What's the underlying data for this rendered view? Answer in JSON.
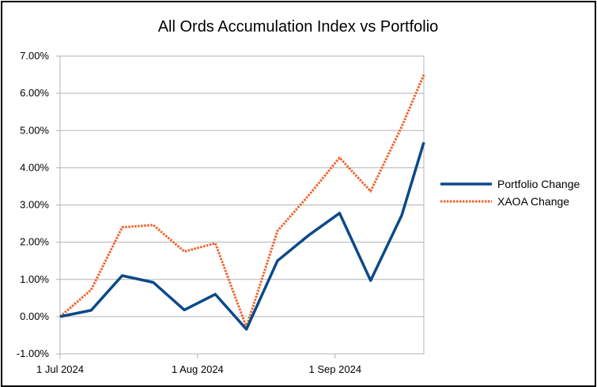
{
  "chart_data": {
    "type": "line",
    "title": "All Ords Accumulation Index vs Portfolio",
    "xlabel": "",
    "ylabel": "",
    "x_tick_labels": [
      "1 Jul 2024",
      "1 Aug 2024",
      "1 Sep 2024"
    ],
    "x_tick_dates": [
      "2024-07-01",
      "2024-08-01",
      "2024-09-01"
    ],
    "x_range": [
      "2024-07-01",
      "2024-09-21"
    ],
    "y_tick_labels": [
      "-1.00%",
      "0.00%",
      "1.00%",
      "2.00%",
      "3.00%",
      "4.00%",
      "5.00%",
      "6.00%",
      "7.00%"
    ],
    "ylim": [
      -1.0,
      7.0
    ],
    "grid": "horizontal",
    "legend_position": "right",
    "x": [
      "2024-07-01",
      "2024-07-08",
      "2024-07-15",
      "2024-07-22",
      "2024-07-29",
      "2024-08-05",
      "2024-08-12",
      "2024-08-19",
      "2024-08-26",
      "2024-09-02",
      "2024-09-09",
      "2024-09-16",
      "2024-09-21"
    ],
    "series": [
      {
        "name": "Portfolio Change",
        "color": "#0c4a88",
        "style": "solid",
        "values": [
          0.0,
          0.17,
          1.1,
          0.92,
          0.18,
          0.6,
          -0.34,
          1.5,
          2.18,
          2.78,
          0.97,
          2.72,
          4.68
        ]
      },
      {
        "name": "XAOA Change",
        "color": "#f0622a",
        "style": "dotted",
        "values": [
          0.0,
          0.72,
          2.4,
          2.46,
          1.75,
          1.97,
          -0.28,
          2.3,
          3.25,
          4.27,
          3.37,
          5.1,
          6.5
        ]
      }
    ]
  }
}
